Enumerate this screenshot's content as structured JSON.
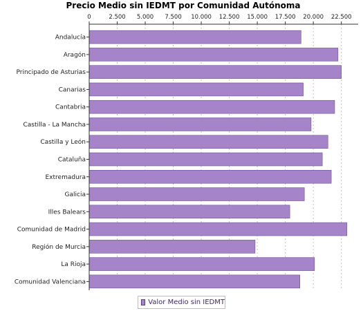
{
  "chart_data": {
    "type": "bar",
    "orientation": "horizontal",
    "title": "Precio Medio sin IEDMT por Comunidad Autónoma",
    "xlim": [
      0,
      24000
    ],
    "x_ticks": [
      0,
      2500,
      5000,
      7500,
      10000,
      12500,
      15000,
      17500,
      20000,
      22500
    ],
    "x_tick_labels": [
      "0",
      "2.500",
      "5.000",
      "7.500",
      "10.000",
      "12.500",
      "15.000",
      "17.500",
      "20.000",
      "22.500"
    ],
    "grid": true,
    "legend_position": "bottom",
    "categories": [
      "Andalucía",
      "Aragón",
      "Principado de Asturias",
      "Canarias",
      "Cantabria",
      "Castilla - La Mancha",
      "Castilla y León",
      "Cataluña",
      "Extremadura",
      "Galicia",
      "Illes Balears",
      "Comunidad de Madrid",
      "Región de Murcia",
      "La Rioja",
      "Comunidad Valenciana"
    ],
    "series": [
      {
        "name": "Valor Medio sin IEDMT",
        "color": "#a684c9",
        "values": [
          18900,
          22200,
          22500,
          19100,
          21900,
          19800,
          21300,
          20800,
          21600,
          19200,
          17900,
          23000,
          14800,
          20100,
          18800
        ]
      }
    ]
  },
  "colors": {
    "bar_fill": "#a684c9",
    "bar_stroke": "#6a4f99",
    "axis": "#333333",
    "grid": "#c0c0c0",
    "legend_text": "#3c2a6a"
  }
}
